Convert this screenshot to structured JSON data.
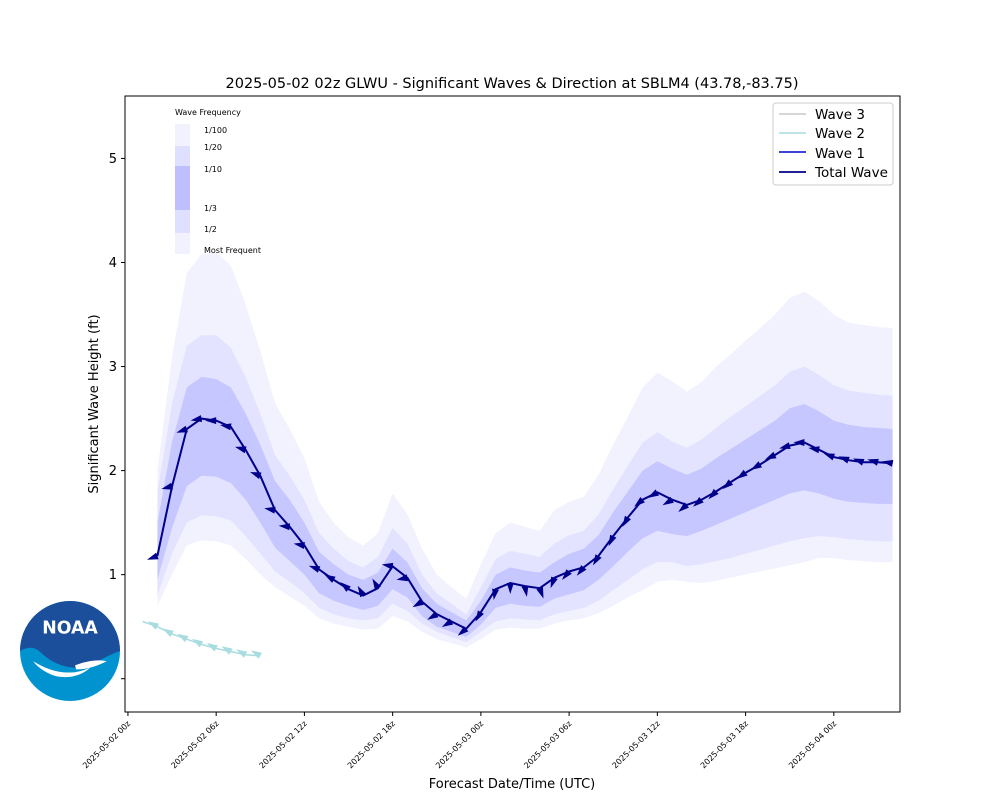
{
  "chart_data": {
    "type": "line",
    "title": "2025-05-02 02z GLWU - Significant Waves & Direction at SBLM4 (43.78,-83.75)",
    "xlabel": "Forecast Date/Time (UTC)",
    "ylabel": "Significant Wave Height (ft)",
    "ylim": [
      -0.32,
      5.6
    ],
    "xlim_hours": [
      -0.2,
      52.5
    ],
    "yticks": [
      1,
      2,
      3,
      4,
      5
    ],
    "yticklabels": [
      "1",
      "2",
      "3",
      "4",
      "5"
    ],
    "extra_ytick": 0,
    "xticks_hours": [
      0,
      6,
      12,
      18,
      24,
      30,
      36,
      42,
      48
    ],
    "xticklabels": [
      "2025-05-02 00z",
      "2025-05-02 06z",
      "2025-05-02 12z",
      "2025-05-02 18z",
      "2025-05-03 00z",
      "2025-05-03 06z",
      "2025-05-03 12z",
      "2025-05-03 18z",
      "2025-05-04 00z"
    ],
    "grid": false,
    "legend_position": "top-right",
    "legend": [
      {
        "name": "Wave 3",
        "color": "#c8c8c8"
      },
      {
        "name": "Wave 2",
        "color": "#a8dce0"
      },
      {
        "name": "Wave 1",
        "color": "#0000cd"
      },
      {
        "name": "Total Wave",
        "color": "#00008b"
      }
    ],
    "frequency_legend": {
      "title": "Wave Frequency",
      "labels": [
        "1/100",
        "1/20",
        "1/10",
        "1/3",
        "1/2",
        "Most Frequent"
      ]
    },
    "total_wave": {
      "name": "Total Wave",
      "x": [
        2,
        3,
        4,
        5,
        6,
        7,
        8,
        9,
        10,
        11,
        12,
        13,
        14,
        15,
        16,
        17,
        18,
        19,
        20,
        21,
        22,
        23,
        24,
        25,
        26,
        27,
        28,
        29,
        30,
        31,
        32,
        33,
        34,
        35,
        36,
        37,
        38,
        39,
        40,
        41,
        42,
        43,
        44,
        45,
        46,
        47,
        48,
        49,
        50,
        51,
        52
      ],
      "y": [
        1.18,
        1.85,
        2.4,
        2.5,
        2.48,
        2.42,
        2.2,
        1.95,
        1.62,
        1.46,
        1.28,
        1.05,
        0.95,
        0.86,
        0.8,
        0.87,
        1.08,
        0.97,
        0.74,
        0.62,
        0.55,
        0.48,
        0.64,
        0.86,
        0.92,
        0.89,
        0.87,
        0.97,
        1.03,
        1.07,
        1.18,
        1.37,
        1.55,
        1.72,
        1.79,
        1.72,
        1.67,
        1.72,
        1.8,
        1.89,
        1.98,
        2.06,
        2.15,
        2.24,
        2.27,
        2.2,
        2.13,
        2.1,
        2.08,
        2.08,
        2.07
      ],
      "direction_deg": [
        250,
        255,
        250,
        260,
        270,
        280,
        285,
        290,
        280,
        275,
        280,
        290,
        300,
        310,
        330,
        330,
        280,
        260,
        240,
        240,
        240,
        230,
        210,
        190,
        180,
        170,
        160,
        200,
        220,
        220,
        210,
        205,
        210,
        230,
        240,
        240,
        230,
        230,
        225,
        230,
        235,
        240,
        245,
        255,
        270,
        280,
        290,
        290,
        290,
        285,
        280
      ]
    },
    "frequency_bands": {
      "x": [
        2,
        3,
        4,
        5,
        6,
        7,
        8,
        9,
        10,
        11,
        12,
        13,
        14,
        15,
        16,
        17,
        18,
        19,
        20,
        21,
        22,
        23,
        24,
        25,
        26,
        27,
        28,
        29,
        30,
        31,
        32,
        33,
        34,
        35,
        36,
        37,
        38,
        39,
        40,
        41,
        42,
        43,
        44,
        45,
        46,
        47,
        48,
        49,
        50,
        51,
        52
      ],
      "p100_lower": [
        0.7,
        1.0,
        1.28,
        1.33,
        1.32,
        1.28,
        1.15,
        1.0,
        0.88,
        0.79,
        0.7,
        0.58,
        0.53,
        0.5,
        0.47,
        0.48,
        0.6,
        0.55,
        0.45,
        0.38,
        0.34,
        0.3,
        0.38,
        0.47,
        0.49,
        0.48,
        0.48,
        0.53,
        0.56,
        0.58,
        0.63,
        0.7,
        0.78,
        0.85,
        0.93,
        0.95,
        0.93,
        0.92,
        0.94,
        0.97,
        1.0,
        1.03,
        1.06,
        1.09,
        1.12,
        1.16,
        1.16,
        1.14,
        1.13,
        1.12,
        1.12
      ],
      "p100_upper": [
        2.0,
        3.1,
        3.9,
        4.08,
        4.1,
        3.97,
        3.6,
        3.15,
        2.65,
        2.4,
        2.12,
        1.7,
        1.5,
        1.36,
        1.28,
        1.4,
        1.78,
        1.58,
        1.25,
        1.0,
        0.88,
        0.77,
        1.1,
        1.4,
        1.5,
        1.46,
        1.42,
        1.62,
        1.7,
        1.75,
        1.96,
        2.25,
        2.52,
        2.8,
        2.94,
        2.86,
        2.76,
        2.85,
        3.0,
        3.12,
        3.25,
        3.37,
        3.5,
        3.66,
        3.72,
        3.63,
        3.5,
        3.42,
        3.4,
        3.38,
        3.37
      ],
      "p20_lower": [
        0.8,
        1.2,
        1.5,
        1.57,
        1.56,
        1.52,
        1.37,
        1.2,
        1.03,
        0.93,
        0.82,
        0.68,
        0.62,
        0.58,
        0.56,
        0.58,
        0.72,
        0.65,
        0.53,
        0.45,
        0.4,
        0.35,
        0.45,
        0.55,
        0.58,
        0.57,
        0.56,
        0.62,
        0.65,
        0.68,
        0.75,
        0.85,
        0.95,
        1.05,
        1.12,
        1.12,
        1.08,
        1.1,
        1.13,
        1.16,
        1.2,
        1.24,
        1.28,
        1.32,
        1.35,
        1.37,
        1.36,
        1.34,
        1.33,
        1.32,
        1.32
      ],
      "p20_upper": [
        1.8,
        2.65,
        3.2,
        3.3,
        3.3,
        3.18,
        2.9,
        2.55,
        2.15,
        1.95,
        1.72,
        1.4,
        1.25,
        1.13,
        1.07,
        1.17,
        1.45,
        1.3,
        1.0,
        0.82,
        0.72,
        0.62,
        0.88,
        1.15,
        1.23,
        1.2,
        1.17,
        1.3,
        1.38,
        1.42,
        1.58,
        1.82,
        2.05,
        2.27,
        2.37,
        2.28,
        2.22,
        2.3,
        2.41,
        2.52,
        2.62,
        2.72,
        2.82,
        2.95,
        3.0,
        2.92,
        2.82,
        2.77,
        2.75,
        2.73,
        2.72
      ],
      "p10_lower": [
        0.95,
        1.45,
        1.85,
        1.95,
        1.94,
        1.88,
        1.72,
        1.5,
        1.26,
        1.13,
        1.0,
        0.82,
        0.75,
        0.7,
        0.66,
        0.7,
        0.86,
        0.78,
        0.6,
        0.5,
        0.45,
        0.4,
        0.52,
        0.68,
        0.72,
        0.7,
        0.69,
        0.77,
        0.81,
        0.85,
        0.95,
        1.08,
        1.22,
        1.35,
        1.42,
        1.39,
        1.37,
        1.42,
        1.48,
        1.54,
        1.6,
        1.66,
        1.72,
        1.78,
        1.81,
        1.78,
        1.73,
        1.7,
        1.69,
        1.68,
        1.68
      ],
      "p10_upper": [
        1.5,
        2.28,
        2.8,
        2.9,
        2.88,
        2.8,
        2.55,
        2.25,
        1.9,
        1.72,
        1.5,
        1.22,
        1.1,
        1.0,
        0.95,
        1.02,
        1.25,
        1.12,
        0.87,
        0.72,
        0.64,
        0.56,
        0.75,
        1.0,
        1.07,
        1.04,
        1.02,
        1.12,
        1.2,
        1.25,
        1.38,
        1.6,
        1.8,
        2.0,
        2.09,
        2.02,
        1.96,
        2.02,
        2.12,
        2.21,
        2.3,
        2.39,
        2.48,
        2.6,
        2.64,
        2.57,
        2.48,
        2.44,
        2.42,
        2.41,
        2.4
      ]
    },
    "wave2": {
      "name": "Wave 2",
      "x": [
        1,
        2,
        3,
        4,
        5,
        6,
        7,
        8,
        9
      ],
      "y": [
        0.55,
        0.5,
        0.43,
        0.38,
        0.33,
        0.29,
        0.26,
        0.23,
        0.22
      ]
    }
  },
  "logo": {
    "text": "NOAA",
    "icon": "noaa-logo-icon"
  }
}
